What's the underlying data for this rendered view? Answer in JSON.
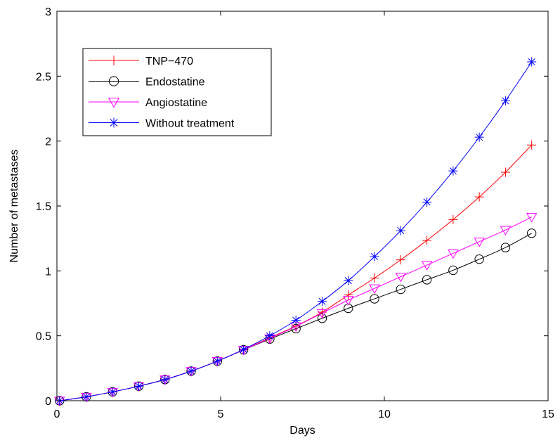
{
  "chart_data": {
    "type": "line",
    "title": "",
    "xlabel": "Days",
    "ylabel": "Number of metastases",
    "xlim": [
      0,
      15
    ],
    "ylim": [
      0,
      3
    ],
    "xticks": [
      0,
      5,
      10,
      15
    ],
    "yticks": [
      0,
      0.5,
      1,
      1.5,
      2,
      2.5,
      3
    ],
    "xtick_labels": [
      "0",
      "5",
      "10",
      "15"
    ],
    "ytick_labels": [
      "0",
      "0.5",
      "1",
      "1.5",
      "2",
      "2.5",
      "3"
    ],
    "grid": false,
    "legend_position": "top-left",
    "series": [
      {
        "name": "TNP−470",
        "color": "#ff0000",
        "marker": "plus",
        "x": [
          0.08,
          0.9,
          1.7,
          2.5,
          3.3,
          4.1,
          4.9,
          5.7,
          6.5,
          7.3,
          8.1,
          8.9,
          9.7,
          10.5,
          11.3,
          12.1,
          12.9,
          13.7,
          14.5
        ],
        "y": [
          0.0,
          0.03,
          0.068,
          0.112,
          0.163,
          0.228,
          0.305,
          0.392,
          0.485,
          0.575,
          0.682,
          0.815,
          0.945,
          1.085,
          1.235,
          1.395,
          1.57,
          1.76,
          1.97
        ]
      },
      {
        "name": "Endostatine",
        "color": "#000000",
        "marker": "circle",
        "x": [
          0.08,
          0.9,
          1.7,
          2.5,
          3.3,
          4.1,
          4.9,
          5.7,
          6.5,
          7.3,
          8.1,
          8.9,
          9.7,
          10.5,
          11.3,
          12.1,
          12.9,
          13.7,
          14.5
        ],
        "y": [
          0.0,
          0.03,
          0.068,
          0.112,
          0.163,
          0.228,
          0.305,
          0.392,
          0.475,
          0.555,
          0.635,
          0.712,
          0.785,
          0.858,
          0.932,
          1.005,
          1.09,
          1.18,
          1.29
        ]
      },
      {
        "name": "Angiostatine",
        "color": "#ff00ff",
        "marker": "triangle-down",
        "x": [
          0.08,
          0.9,
          1.7,
          2.5,
          3.3,
          4.1,
          4.9,
          5.7,
          6.5,
          7.3,
          8.1,
          8.9,
          9.7,
          10.5,
          11.3,
          12.1,
          12.9,
          13.7,
          14.5
        ],
        "y": [
          0.0,
          0.03,
          0.068,
          0.112,
          0.163,
          0.228,
          0.305,
          0.392,
          0.48,
          0.572,
          0.675,
          0.775,
          0.865,
          0.955,
          1.045,
          1.135,
          1.225,
          1.315,
          1.415
        ]
      },
      {
        "name": "Without treatment",
        "color": "#0000ff",
        "marker": "star",
        "x": [
          0.08,
          0.9,
          1.7,
          2.5,
          3.3,
          4.1,
          4.9,
          5.7,
          6.5,
          7.3,
          8.1,
          8.9,
          9.7,
          10.5,
          11.3,
          12.1,
          12.9,
          13.7,
          14.5
        ],
        "y": [
          0.0,
          0.03,
          0.068,
          0.112,
          0.163,
          0.228,
          0.305,
          0.395,
          0.5,
          0.62,
          0.765,
          0.925,
          1.11,
          1.31,
          1.53,
          1.77,
          2.03,
          2.31,
          2.61
        ]
      }
    ]
  }
}
